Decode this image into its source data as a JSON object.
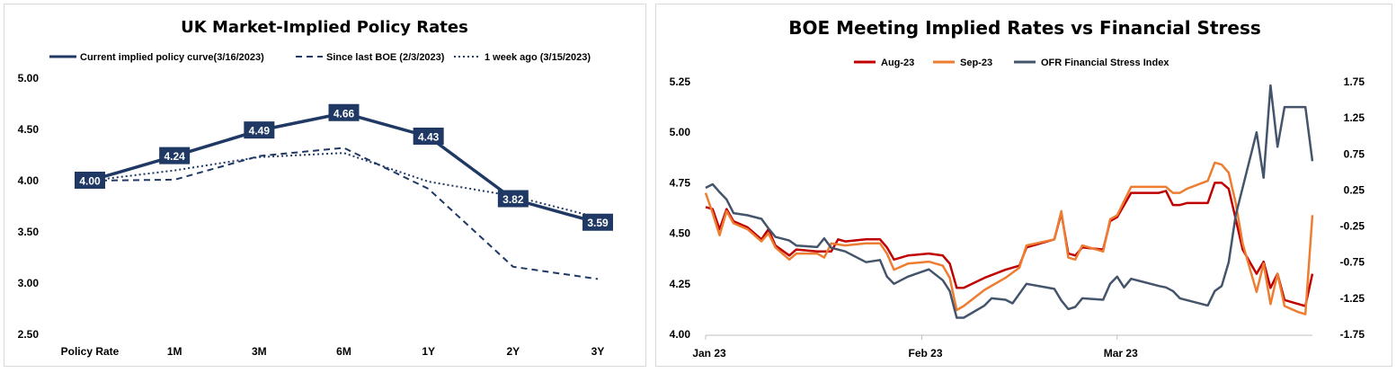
{
  "chart_data": [
    {
      "type": "line",
      "title": "UK Market-Implied Policy Rates",
      "categories": [
        "Policy Rate",
        "1M",
        "3M",
        "6M",
        "1Y",
        "2Y",
        "3Y"
      ],
      "ylim": [
        2.5,
        5.0
      ],
      "yticks": [
        "2.50",
        "3.00",
        "3.50",
        "4.00",
        "4.50",
        "5.00"
      ],
      "grid": false,
      "legend_position": "top",
      "series": [
        {
          "name": "Current implied policy curve(3/16/2023)",
          "values": [
            4.0,
            4.24,
            4.49,
            4.66,
            4.43,
            3.82,
            3.59
          ],
          "labels": [
            "4.00",
            "4.24",
            "4.49",
            "4.66",
            "4.43",
            "3.82",
            "3.59"
          ],
          "style": "solid",
          "color": "#1f3864"
        },
        {
          "name": "Since last BOE (2/3/2023)",
          "values": [
            4.0,
            4.01,
            4.24,
            4.32,
            3.92,
            3.16,
            3.04
          ],
          "style": "dashed",
          "color": "#1f3864"
        },
        {
          "name": "1 week ago (3/15/2023)",
          "values": [
            4.0,
            4.1,
            4.23,
            4.27,
            3.99,
            3.85,
            3.64
          ],
          "style": "dotted",
          "color": "#1f3864"
        }
      ]
    },
    {
      "type": "line",
      "title": "BOE Meeting Implied Rates vs Financial Stress",
      "xticks": [
        "Jan 23",
        "Feb 23",
        "Mar 23"
      ],
      "x_range": [
        "2023-01-01",
        "2023-03-29"
      ],
      "ylim": [
        4.0,
        5.25
      ],
      "yticks": [
        "4.00",
        "4.25",
        "4.50",
        "4.75",
        "5.00",
        "5.25"
      ],
      "y2lim": [
        -1.75,
        1.75
      ],
      "y2ticks": [
        "-1.75",
        "-1.25",
        "-0.75",
        "-0.25",
        "0.25",
        "0.75",
        "1.25",
        "1.75"
      ],
      "grid": false,
      "legend_position": "top",
      "series": [
        {
          "name": "Aug-23",
          "axis": "left",
          "color": "#c00000",
          "points": [
            [
              "2023-01-01",
              4.63
            ],
            [
              "2023-01-02",
              4.62
            ],
            [
              "2023-01-03",
              4.52
            ],
            [
              "2023-01-04",
              4.62
            ],
            [
              "2023-01-05",
              4.56
            ],
            [
              "2023-01-07",
              4.53
            ],
            [
              "2023-01-09",
              4.47
            ],
            [
              "2023-01-10",
              4.52
            ],
            [
              "2023-01-11",
              4.44
            ],
            [
              "2023-01-13",
              4.39
            ],
            [
              "2023-01-14",
              4.42
            ],
            [
              "2023-01-17",
              4.41
            ],
            [
              "2023-01-19",
              4.41
            ],
            [
              "2023-01-20",
              4.47
            ],
            [
              "2023-01-21",
              4.46
            ],
            [
              "2023-01-24",
              4.47
            ],
            [
              "2023-01-26",
              4.47
            ],
            [
              "2023-01-27",
              4.43
            ],
            [
              "2023-01-28",
              4.37
            ],
            [
              "2023-01-30",
              4.39
            ],
            [
              "2023-02-02",
              4.4
            ],
            [
              "2023-02-04",
              4.39
            ],
            [
              "2023-02-05",
              4.35
            ],
            [
              "2023-02-06",
              4.23
            ],
            [
              "2023-02-07",
              4.23
            ],
            [
              "2023-02-10",
              4.28
            ],
            [
              "2023-02-13",
              4.32
            ],
            [
              "2023-02-15",
              4.34
            ],
            [
              "2023-02-16",
              4.43
            ],
            [
              "2023-02-20",
              4.47
            ],
            [
              "2023-02-21",
              4.6
            ],
            [
              "2023-02-22",
              4.4
            ],
            [
              "2023-02-23",
              4.39
            ],
            [
              "2023-02-24",
              4.43
            ],
            [
              "2023-02-27",
              4.42
            ],
            [
              "2023-02-28",
              4.56
            ],
            [
              "2023-03-01",
              4.58
            ],
            [
              "2023-03-03",
              4.7
            ],
            [
              "2023-03-07",
              4.7
            ],
            [
              "2023-03-08",
              4.71
            ],
            [
              "2023-03-09",
              4.64
            ],
            [
              "2023-03-10",
              4.64
            ],
            [
              "2023-03-11",
              4.65
            ],
            [
              "2023-03-14",
              4.65
            ],
            [
              "2023-03-15",
              4.75
            ],
            [
              "2023-03-16",
              4.75
            ],
            [
              "2023-03-17",
              4.72
            ],
            [
              "2023-03-18",
              4.57
            ],
            [
              "2023-03-19",
              4.42
            ],
            [
              "2023-03-21",
              4.3
            ],
            [
              "2023-03-22",
              4.36
            ],
            [
              "2023-03-23",
              4.23
            ],
            [
              "2023-03-24",
              4.3
            ],
            [
              "2023-03-25",
              4.17
            ],
            [
              "2023-03-27",
              4.15
            ],
            [
              "2023-03-28",
              4.14
            ],
            [
              "2023-03-29",
              4.3
            ]
          ]
        },
        {
          "name": "Sep-23",
          "axis": "left",
          "color": "#ed7d31",
          "points": [
            [
              "2023-01-01",
              4.7
            ],
            [
              "2023-01-02",
              4.6
            ],
            [
              "2023-01-03",
              4.49
            ],
            [
              "2023-01-04",
              4.61
            ],
            [
              "2023-01-05",
              4.55
            ],
            [
              "2023-01-07",
              4.52
            ],
            [
              "2023-01-09",
              4.46
            ],
            [
              "2023-01-10",
              4.5
            ],
            [
              "2023-01-11",
              4.43
            ],
            [
              "2023-01-13",
              4.37
            ],
            [
              "2023-01-14",
              4.4
            ],
            [
              "2023-01-17",
              4.4
            ],
            [
              "2023-01-18",
              4.38
            ],
            [
              "2023-01-19",
              4.45
            ],
            [
              "2023-01-21",
              4.44
            ],
            [
              "2023-01-24",
              4.45
            ],
            [
              "2023-01-26",
              4.45
            ],
            [
              "2023-01-27",
              4.4
            ],
            [
              "2023-01-28",
              4.32
            ],
            [
              "2023-01-30",
              4.35
            ],
            [
              "2023-02-02",
              4.36
            ],
            [
              "2023-02-04",
              4.34
            ],
            [
              "2023-02-05",
              4.28
            ],
            [
              "2023-02-06",
              4.12
            ],
            [
              "2023-02-07",
              4.14
            ],
            [
              "2023-02-10",
              4.22
            ],
            [
              "2023-02-13",
              4.28
            ],
            [
              "2023-02-15",
              4.33
            ],
            [
              "2023-02-16",
              4.44
            ],
            [
              "2023-02-20",
              4.47
            ],
            [
              "2023-02-21",
              4.61
            ],
            [
              "2023-02-22",
              4.38
            ],
            [
              "2023-02-23",
              4.37
            ],
            [
              "2023-02-24",
              4.44
            ],
            [
              "2023-02-27",
              4.41
            ],
            [
              "2023-02-28",
              4.57
            ],
            [
              "2023-03-01",
              4.59
            ],
            [
              "2023-03-03",
              4.73
            ],
            [
              "2023-03-07",
              4.73
            ],
            [
              "2023-03-08",
              4.73
            ],
            [
              "2023-03-09",
              4.7
            ],
            [
              "2023-03-10",
              4.7
            ],
            [
              "2023-03-11",
              4.72
            ],
            [
              "2023-03-14",
              4.76
            ],
            [
              "2023-03-15",
              4.85
            ],
            [
              "2023-03-16",
              4.84
            ],
            [
              "2023-03-17",
              4.8
            ],
            [
              "2023-03-18",
              4.65
            ],
            [
              "2023-03-19",
              4.45
            ],
            [
              "2023-03-21",
              4.21
            ],
            [
              "2023-03-22",
              4.35
            ],
            [
              "2023-03-23",
              4.15
            ],
            [
              "2023-03-24",
              4.3
            ],
            [
              "2023-03-25",
              4.14
            ],
            [
              "2023-03-27",
              4.11
            ],
            [
              "2023-03-28",
              4.1
            ],
            [
              "2023-03-29",
              4.59
            ]
          ]
        },
        {
          "name": "OFR Financial Stress Index",
          "axis": "right",
          "color": "#44546a",
          "points": [
            [
              "2023-01-01",
              0.28
            ],
            [
              "2023-01-02",
              0.33
            ],
            [
              "2023-01-03",
              0.22
            ],
            [
              "2023-01-04",
              0.12
            ],
            [
              "2023-01-05",
              -0.07
            ],
            [
              "2023-01-07",
              -0.1
            ],
            [
              "2023-01-09",
              -0.15
            ],
            [
              "2023-01-10",
              -0.28
            ],
            [
              "2023-01-11",
              -0.4
            ],
            [
              "2023-01-13",
              -0.45
            ],
            [
              "2023-01-14",
              -0.52
            ],
            [
              "2023-01-17",
              -0.54
            ],
            [
              "2023-01-18",
              -0.42
            ],
            [
              "2023-01-19",
              -0.55
            ],
            [
              "2023-01-21",
              -0.6
            ],
            [
              "2023-01-24",
              -0.75
            ],
            [
              "2023-01-26",
              -0.72
            ],
            [
              "2023-01-27",
              -0.95
            ],
            [
              "2023-01-28",
              -1.05
            ],
            [
              "2023-01-30",
              -0.95
            ],
            [
              "2023-02-02",
              -0.85
            ],
            [
              "2023-02-04",
              -1.0
            ],
            [
              "2023-02-05",
              -1.15
            ],
            [
              "2023-02-06",
              -1.52
            ],
            [
              "2023-02-07",
              -1.52
            ],
            [
              "2023-02-10",
              -1.35
            ],
            [
              "2023-02-11",
              -1.25
            ],
            [
              "2023-02-13",
              -1.27
            ],
            [
              "2023-02-14",
              -1.32
            ],
            [
              "2023-02-16",
              -1.05
            ],
            [
              "2023-02-20",
              -1.12
            ],
            [
              "2023-02-21",
              -1.28
            ],
            [
              "2023-02-22",
              -1.4
            ],
            [
              "2023-02-23",
              -1.37
            ],
            [
              "2023-02-24",
              -1.25
            ],
            [
              "2023-02-27",
              -1.27
            ],
            [
              "2023-02-28",
              -1.05
            ],
            [
              "2023-03-01",
              -0.95
            ],
            [
              "2023-03-02",
              -1.1
            ],
            [
              "2023-03-03",
              -0.98
            ],
            [
              "2023-03-07",
              -1.08
            ],
            [
              "2023-03-08",
              -1.1
            ],
            [
              "2023-03-09",
              -1.15
            ],
            [
              "2023-03-10",
              -1.25
            ],
            [
              "2023-03-14",
              -1.35
            ],
            [
              "2023-03-15",
              -1.15
            ],
            [
              "2023-03-16",
              -1.08
            ],
            [
              "2023-03-17",
              -0.75
            ],
            [
              "2023-03-18",
              -0.1
            ],
            [
              "2023-03-21",
              1.05
            ],
            [
              "2023-03-22",
              0.42
            ],
            [
              "2023-03-23",
              1.7
            ],
            [
              "2023-03-24",
              0.85
            ],
            [
              "2023-03-25",
              1.4
            ],
            [
              "2023-03-27",
              1.4
            ],
            [
              "2023-03-28",
              1.4
            ],
            [
              "2023-03-29",
              0.65
            ]
          ]
        }
      ]
    }
  ]
}
